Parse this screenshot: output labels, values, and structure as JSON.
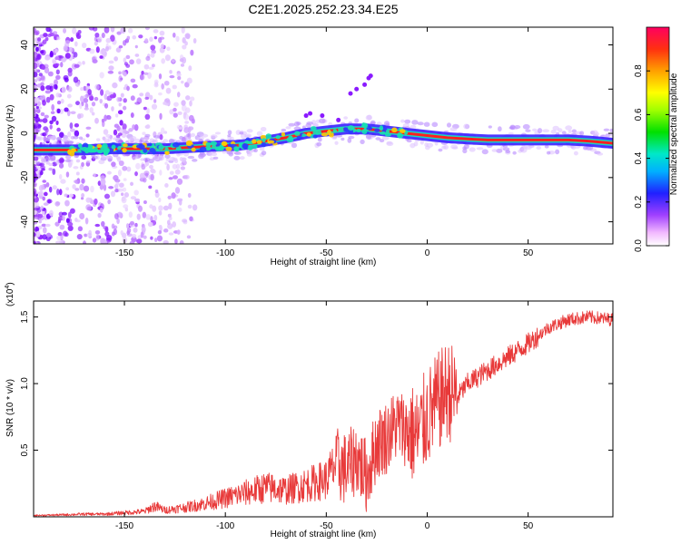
{
  "title": "C2E1.2025.252.23.34.E25",
  "chart_data": [
    {
      "type": "heatmap",
      "xlabel": "Height of straight line (km)",
      "ylabel": "Frequency (Hz)",
      "xlim": [
        -195,
        92
      ],
      "ylim": [
        -50,
        48
      ],
      "xticks": [
        -150,
        -100,
        -50,
        0,
        50
      ],
      "yticks": [
        -40,
        -20,
        0,
        20,
        40
      ],
      "ridge": {
        "x": [
          -195,
          -180,
          -170,
          -160,
          -150,
          -140,
          -130,
          -120,
          -110,
          -100,
          -95,
          -90,
          -80,
          -70,
          -60,
          -50,
          -40,
          -30,
          -20,
          -10,
          0,
          10,
          20,
          30,
          40,
          50,
          60,
          70,
          80,
          92
        ],
        "y": [
          -7.5,
          -7.5,
          -7.5,
          -7,
          -7,
          -7,
          -7,
          -6.5,
          -6,
          -5.5,
          -5.5,
          -5,
          -3.5,
          -2,
          0,
          1,
          2,
          2,
          1,
          0,
          -1,
          -2,
          -2.5,
          -3,
          -3,
          -3,
          -3,
          -3,
          -3.5,
          -4.5
        ]
      },
      "colorbar": {
        "label": "Normalized spectral amplitude",
        "range": [
          0,
          1
        ],
        "ticks": [
          "0.0",
          "0.2",
          "0.4",
          "0.6",
          "0.8"
        ]
      }
    },
    {
      "type": "line",
      "xlabel": "Height of straight line (km)",
      "ylabel": "SNR (10 * v/v)",
      "scale_label": "(x10",
      "scale_exp": "4",
      "scale_close": ")",
      "xlim": [
        -195,
        92
      ],
      "ylim": [
        0,
        1.62
      ],
      "xticks": [
        -150,
        -100,
        -50,
        0,
        50
      ],
      "yticks": [
        "0.5",
        "1.0",
        "1.5"
      ],
      "series": [
        {
          "name": "SNR",
          "color": "#e83a3a",
          "x": [
            -195,
            -180,
            -170,
            -160,
            -150,
            -140,
            -135,
            -130,
            -120,
            -110,
            -100,
            -90,
            -80,
            -70,
            -60,
            -50,
            -45,
            -40,
            -35,
            -30,
            -25,
            -20,
            -15,
            -10,
            -5,
            0,
            5,
            10,
            15,
            20,
            25,
            30,
            40,
            50,
            60,
            70,
            80,
            92
          ],
          "y": [
            0.01,
            0.015,
            0.02,
            0.02,
            0.03,
            0.04,
            0.08,
            0.05,
            0.07,
            0.1,
            0.14,
            0.18,
            0.22,
            0.2,
            0.24,
            0.28,
            0.4,
            0.35,
            0.45,
            0.3,
            0.55,
            0.6,
            0.7,
            0.65,
            0.6,
            0.75,
            0.85,
            0.95,
            0.9,
            1.0,
            1.05,
            1.1,
            1.2,
            1.3,
            1.42,
            1.48,
            1.5,
            1.48
          ]
        }
      ]
    }
  ]
}
